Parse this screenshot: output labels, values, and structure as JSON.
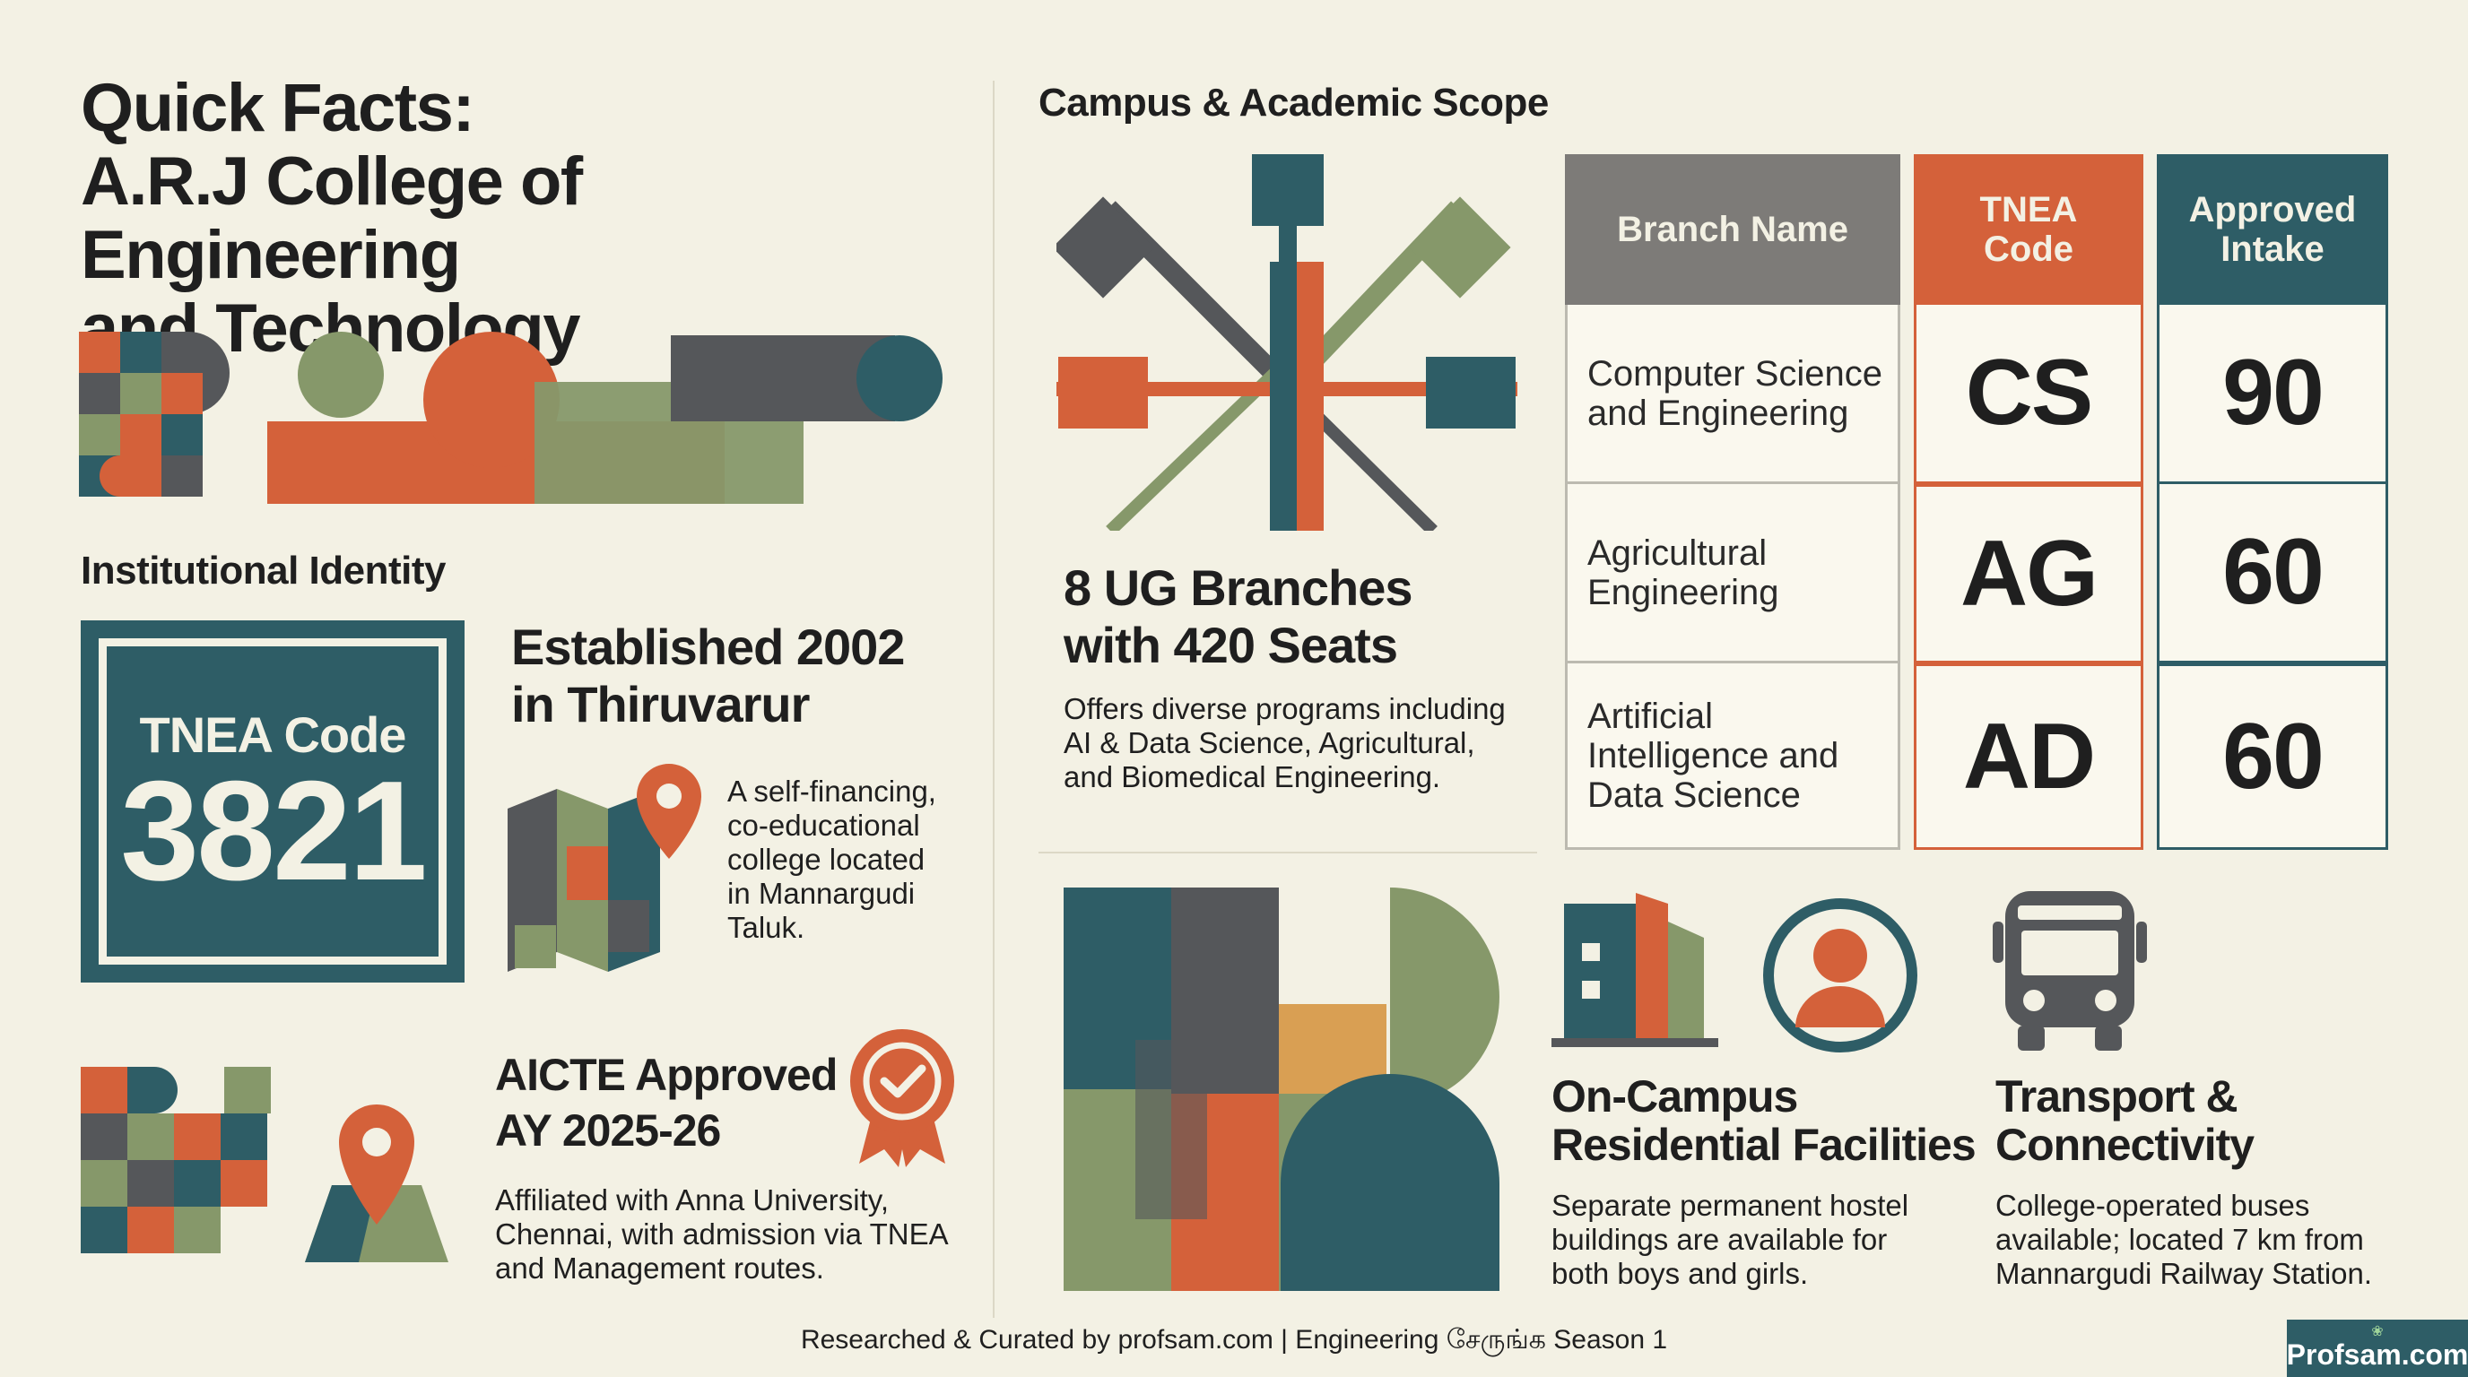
{
  "title": {
    "line1": "Quick Facts:",
    "line2": "A.R.J College of Engineering",
    "line3": "and Technology"
  },
  "identity": {
    "heading": "Institutional Identity",
    "code_label": "TNEA Code",
    "code_value": "3821",
    "established_line1": "Established 2002",
    "established_line2": "in Thiruvarur",
    "location_desc": [
      "A self-financing,",
      "co-educational",
      "college located",
      "in Mannargudi",
      "Taluk."
    ],
    "aicte_line1": "AICTE Approved",
    "aicte_line2": "AY 2025-26",
    "affiliation": [
      "Affiliated with Anna University,",
      "Chennai, with admission via TNEA",
      "and Management routes."
    ]
  },
  "scope": {
    "heading": "Campus & Academic Scope",
    "branches_line1": "8 UG Branches",
    "branches_line2": "with 420 Seats",
    "branches_desc": [
      "Offers diverse programs including",
      "AI & Data Science, Agricultural,",
      "and Biomedical Engineering."
    ],
    "table": {
      "headers": {
        "name": "Branch Name",
        "code": [
          "TNEA",
          "Code"
        ],
        "intake": [
          "Approved",
          "Intake"
        ]
      },
      "rows": [
        {
          "name": [
            "Computer Science",
            "and Engineering"
          ],
          "code": "CS",
          "intake": "90"
        },
        {
          "name": [
            "Agricultural",
            "Engineering"
          ],
          "code": "AG",
          "intake": "60"
        },
        {
          "name": [
            "Artificial",
            "Intelligence and",
            "Data Science"
          ],
          "code": "AD",
          "intake": "60"
        }
      ]
    }
  },
  "facilities": {
    "residential_title": [
      "On-Campus",
      "Residential Facilities"
    ],
    "residential_desc": [
      "Separate permanent hostel",
      "buildings are available for",
      "both boys and girls."
    ],
    "transport_title": [
      "Transport &",
      "Connectivity"
    ],
    "transport_desc": [
      "College-operated buses",
      "available; located 7 km from",
      "Mannargudi Railway Station."
    ]
  },
  "footer": {
    "credit": "Researched & Curated by profsam.com | Engineering சேருங்க Season 1",
    "logo": "Profsam.com"
  },
  "colors": {
    "teal": "#2e5d66",
    "rust": "#d4613a",
    "olive": "#86986a",
    "slate": "#55575a",
    "cream": "#f3f1e4"
  }
}
